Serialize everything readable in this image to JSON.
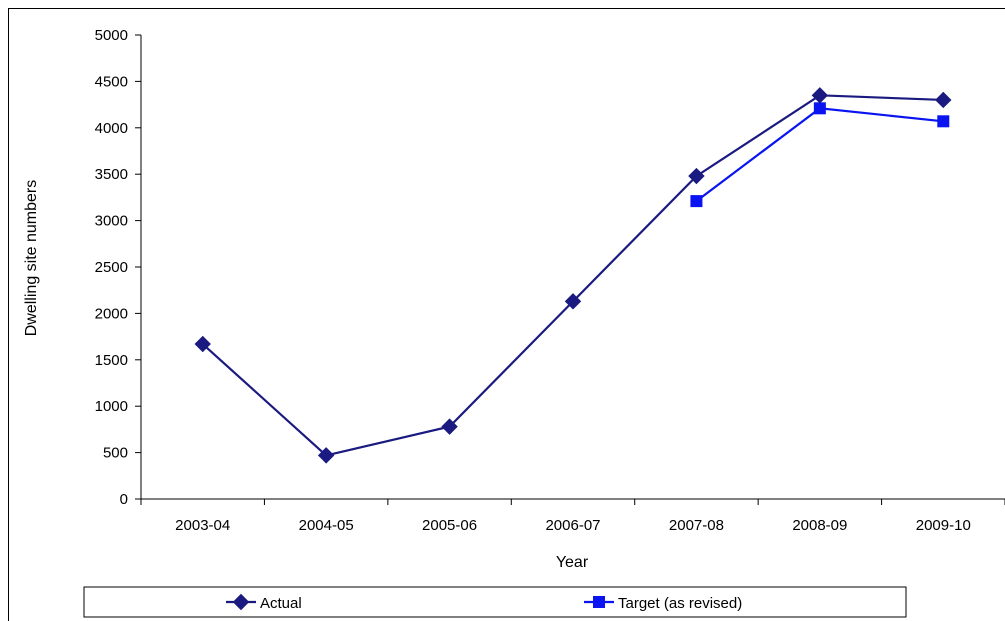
{
  "chart_data": {
    "type": "line",
    "title": "",
    "xlabel": "Year",
    "ylabel": "Dwelling site numbers",
    "categories": [
      "2003-04",
      "2004-05",
      "2005-06",
      "2006-07",
      "2007-08",
      "2008-09",
      "2009-10"
    ],
    "ylim": [
      0,
      5000
    ],
    "yticks": [
      0,
      500,
      1000,
      1500,
      2000,
      2500,
      3000,
      3500,
      4000,
      4500,
      5000
    ],
    "grid": false,
    "legend_position": "bottom",
    "series": [
      {
        "name": "Actual",
        "marker": "diamond",
        "color": "#1a1a80",
        "values": [
          1670,
          470,
          780,
          2130,
          3480,
          4350,
          4300
        ]
      },
      {
        "name": "Target (as revised)",
        "marker": "square",
        "color": "#0a14f0",
        "values": [
          null,
          null,
          null,
          null,
          3210,
          4210,
          4070
        ]
      }
    ]
  }
}
